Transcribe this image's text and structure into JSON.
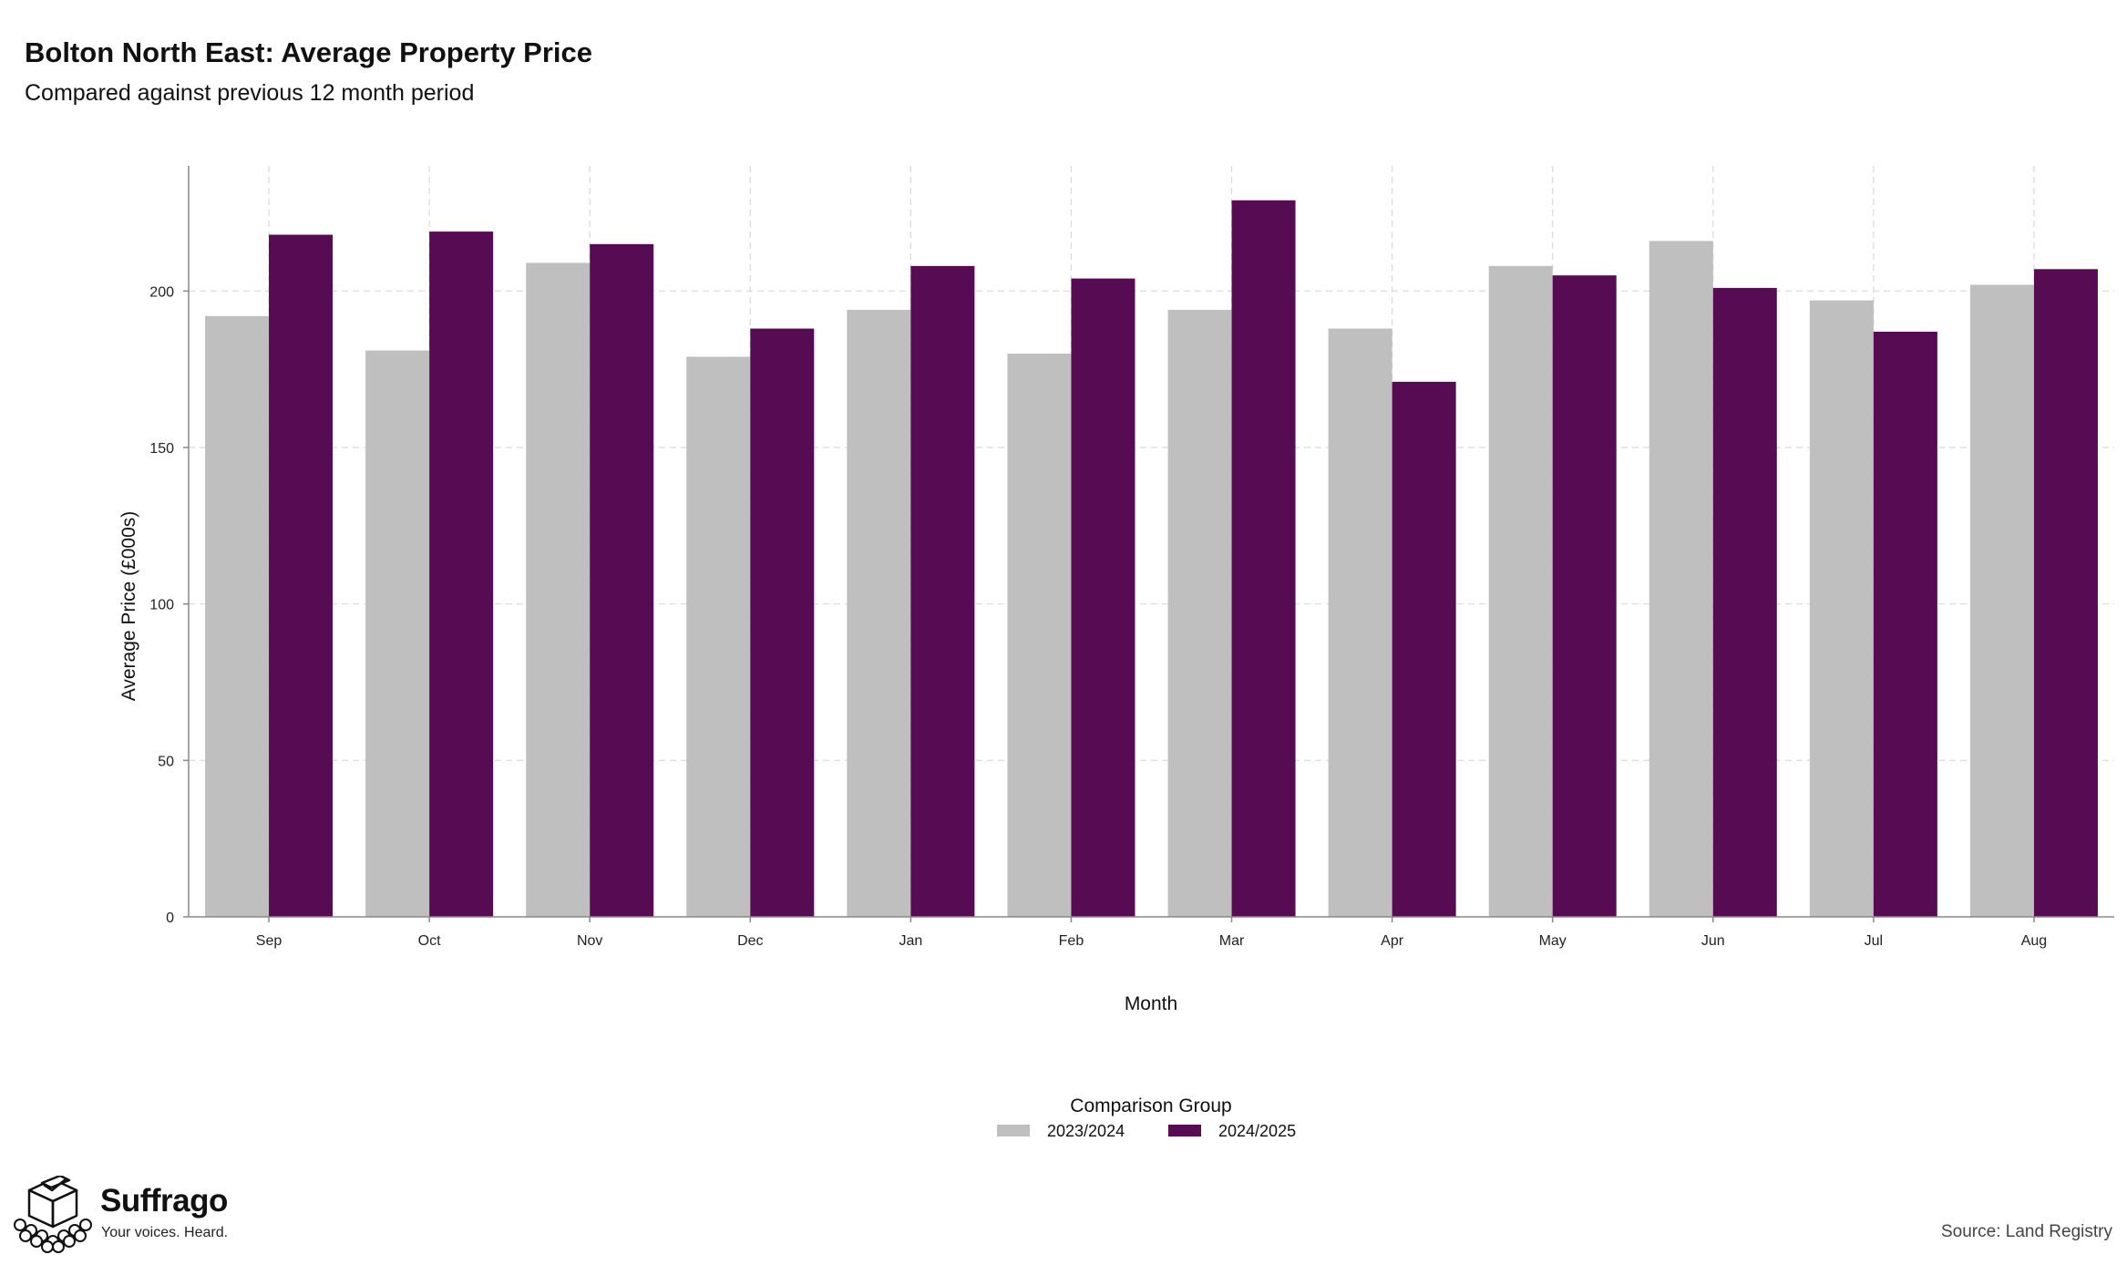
{
  "chart_data": {
    "type": "bar",
    "title": "Bolton North East: Average Property Price",
    "subtitle": "Compared against previous 12 month period",
    "xlabel": "Month",
    "ylabel": "Average Price (£000s)",
    "categories": [
      "Sep",
      "Oct",
      "Nov",
      "Dec",
      "Jan",
      "Feb",
      "Mar",
      "Apr",
      "May",
      "Jun",
      "Jul",
      "Aug"
    ],
    "series": [
      {
        "name": "2023/2024",
        "color": "#bfbfbf",
        "values": [
          192,
          181,
          209,
          179,
          194,
          180,
          194,
          188,
          208,
          216,
          197,
          202
        ]
      },
      {
        "name": "2024/2025",
        "color": "#560b52",
        "values": [
          218,
          219,
          215,
          188,
          208,
          204,
          229,
          171,
          205,
          201,
          187,
          207
        ]
      }
    ],
    "ylim": [
      0,
      240
    ],
    "yticks": [
      0,
      50,
      100,
      150,
      200
    ],
    "grid": true,
    "legend": {
      "title": "Comparison Group",
      "position": "bottom"
    }
  },
  "branding": {
    "name": "Suffrago",
    "tagline": "Your voices. Heard.",
    "logo": "ballot-box-icon"
  },
  "source": "Source: Land Registry"
}
